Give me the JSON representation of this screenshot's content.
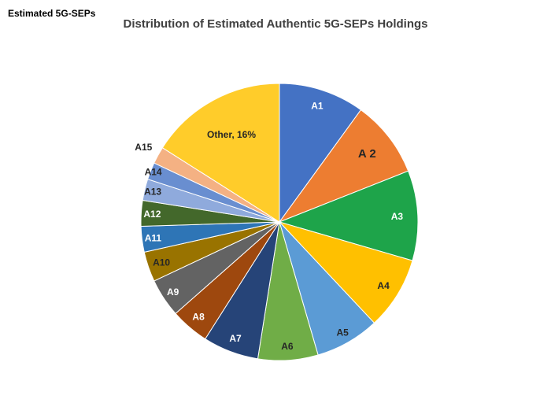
{
  "corner_label": "Estimated 5G-SEPs",
  "chart_data": {
    "type": "pie",
    "title": "Distribution of Estimated Authentic 5G-SEPs Holdings",
    "title_color": "#404040",
    "start_angle_deg": 0,
    "direction": "clockwise",
    "legend": "none",
    "values_unit": "percent",
    "note": "Only the 'Other' slice shows its percentage on the chart (16%); remaining slice values estimated from arc angles.",
    "slices": [
      {
        "id": "a1",
        "label": "A1",
        "value": 10,
        "color": "#4472C4",
        "label_color": "#FFFFFF",
        "label_radius": 0.88,
        "label_size": 12
      },
      {
        "id": "a2",
        "label": "A 2",
        "value": 9,
        "color": "#ED7D31",
        "label_color": "#262626",
        "label_radius": 0.8,
        "label_size": 15
      },
      {
        "id": "a3",
        "label": "A3",
        "value": 10.5,
        "color": "#1EA44A",
        "label_color": "#FFFFFF",
        "label_radius": 0.85,
        "label_size": 12
      },
      {
        "id": "a4",
        "label": "A4",
        "value": 8.5,
        "color": "#FFC000",
        "label_color": "#262626",
        "label_radius": 0.88,
        "label_size": 12
      },
      {
        "id": "a5",
        "label": "A5",
        "value": 7.5,
        "color": "#5B9BD5",
        "label_color": "#262626",
        "label_radius": 0.92,
        "label_size": 12
      },
      {
        "id": "a6",
        "label": "A6",
        "value": 7,
        "color": "#70AD47",
        "label_color": "#262626",
        "label_radius": 0.9,
        "label_size": 12
      },
      {
        "id": "a7",
        "label": "A7",
        "value": 6.5,
        "color": "#264478",
        "label_color": "#FFFFFF",
        "label_radius": 0.9,
        "label_size": 12
      },
      {
        "id": "a8",
        "label": "A8",
        "value": 4.5,
        "color": "#9E480E",
        "label_color": "#FFFFFF",
        "label_radius": 0.9,
        "label_size": 12
      },
      {
        "id": "a9",
        "label": "A9",
        "value": 4.5,
        "color": "#636363",
        "label_color": "#FFFFFF",
        "label_radius": 0.92,
        "label_size": 12
      },
      {
        "id": "a10",
        "label": "A10",
        "value": 3.5,
        "color": "#997300",
        "label_color": "#262626",
        "label_radius": 0.9,
        "label_size": 12
      },
      {
        "id": "a11",
        "label": "A11",
        "value": 3,
        "color": "#2E75B6",
        "label_color": "#FFFFFF",
        "label_radius": 0.92,
        "label_size": 12
      },
      {
        "id": "a12",
        "label": "A12",
        "value": 3,
        "color": "#43682B",
        "label_color": "#FFFFFF",
        "label_radius": 0.92,
        "label_size": 12
      },
      {
        "id": "a13",
        "label": "A13",
        "value": 2.5,
        "color": "#8FAADC",
        "label_color": "#262626",
        "label_radius": 0.94,
        "label_size": 12
      },
      {
        "id": "a14",
        "label": "A14",
        "value": 2,
        "color": "#698ED0",
        "label_color": "#262626",
        "label_radius": 0.98,
        "label_size": 12
      },
      {
        "id": "a15",
        "label": "A15",
        "value": 2,
        "color": "#F4B183",
        "label_color": "#262626",
        "label_radius": 1.12,
        "label_size": 12
      },
      {
        "id": "other",
        "label": "Other, 16%",
        "value": 16,
        "color": "#FFCC2A",
        "label_color": "#262626",
        "label_radius": 0.72,
        "label_size": 12
      }
    ]
  }
}
